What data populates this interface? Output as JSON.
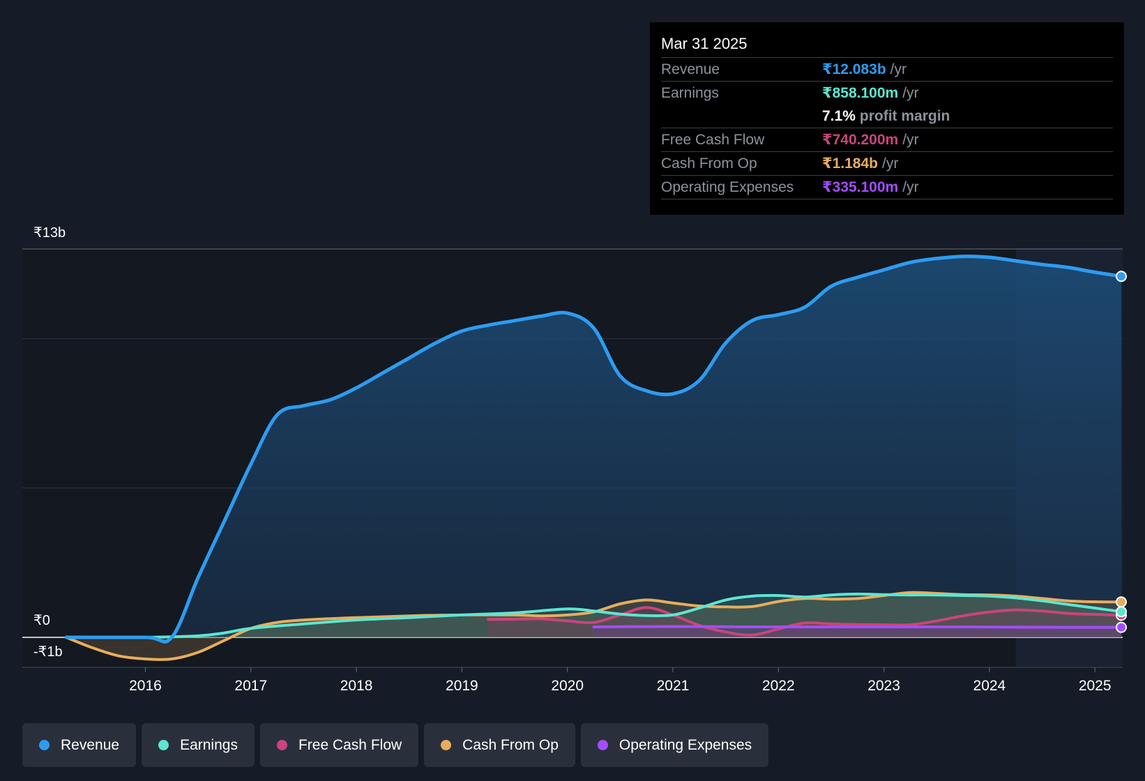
{
  "colors": {
    "revenue": "#2d9cf0",
    "earnings": "#5ce6d2",
    "free_cash_flow": "#c9457c",
    "cash_from_op": "#e8ad5c",
    "operating_expenses": "#a34dff",
    "background": "#161c27"
  },
  "tooltip": {
    "date": "Mar 31 2025",
    "rows": [
      {
        "label": "Revenue",
        "value": "₹12.083b",
        "unit": "/yr"
      },
      {
        "label": "Earnings",
        "value": "₹858.100m",
        "unit": "/yr"
      },
      {
        "label": "",
        "value": "7.1%",
        "unit": "profit margin"
      },
      {
        "label": "Free Cash Flow",
        "value": "₹740.200m",
        "unit": "/yr"
      },
      {
        "label": "Cash From Op",
        "value": "₹1.184b",
        "unit": "/yr"
      },
      {
        "label": "Operating Expenses",
        "value": "₹335.100m",
        "unit": "/yr"
      }
    ]
  },
  "legend": [
    {
      "label": "Revenue",
      "icon": "revenue-dot-icon"
    },
    {
      "label": "Earnings",
      "icon": "earnings-dot-icon"
    },
    {
      "label": "Free Cash Flow",
      "icon": "free-cash-flow-dot-icon"
    },
    {
      "label": "Cash From Op",
      "icon": "cash-from-op-dot-icon"
    },
    {
      "label": "Operating Expenses",
      "icon": "operating-expenses-dot-icon"
    }
  ],
  "chart_data": {
    "type": "area",
    "title": "",
    "xlabel": "",
    "ylabel": "",
    "ylim": [
      -1,
      13
    ],
    "yticks": [
      {
        "value": 13,
        "label": "₹13b"
      },
      {
        "value": 0,
        "label": "₹0"
      },
      {
        "value": -1,
        "label": "-₹1b"
      }
    ],
    "xlim": [
      2015.25,
      2025.25
    ],
    "xticks": [
      {
        "value": 2016,
        "label": "2016"
      },
      {
        "value": 2017,
        "label": "2017"
      },
      {
        "value": 2018,
        "label": "2018"
      },
      {
        "value": 2019,
        "label": "2019"
      },
      {
        "value": 2020,
        "label": "2020"
      },
      {
        "value": 2021,
        "label": "2021"
      },
      {
        "value": 2022,
        "label": "2022"
      },
      {
        "value": 2023,
        "label": "2023"
      },
      {
        "value": 2024,
        "label": "2024"
      },
      {
        "value": 2025,
        "label": "2025"
      }
    ],
    "grid": true,
    "forecast_shade_from": 2024.25,
    "series": [
      {
        "name": "Revenue",
        "key": "revenue",
        "points": [
          [
            2015.25,
            0
          ],
          [
            2016.0,
            0
          ],
          [
            2016.25,
            0
          ],
          [
            2016.5,
            2.0
          ],
          [
            2016.75,
            3.9
          ],
          [
            2017.0,
            5.8
          ],
          [
            2017.25,
            7.45
          ],
          [
            2017.5,
            7.75
          ],
          [
            2017.75,
            7.95
          ],
          [
            2018.0,
            8.35
          ],
          [
            2018.25,
            8.85
          ],
          [
            2018.5,
            9.35
          ],
          [
            2018.75,
            9.85
          ],
          [
            2019.0,
            10.25
          ],
          [
            2019.25,
            10.45
          ],
          [
            2019.5,
            10.6
          ],
          [
            2019.75,
            10.75
          ],
          [
            2020.0,
            10.85
          ],
          [
            2020.25,
            10.35
          ],
          [
            2020.5,
            8.75
          ],
          [
            2020.75,
            8.25
          ],
          [
            2021.0,
            8.15
          ],
          [
            2021.25,
            8.6
          ],
          [
            2021.5,
            9.85
          ],
          [
            2021.75,
            10.6
          ],
          [
            2022.0,
            10.8
          ],
          [
            2022.25,
            11.05
          ],
          [
            2022.5,
            11.75
          ],
          [
            2022.75,
            12.05
          ],
          [
            2023.0,
            12.3
          ],
          [
            2023.25,
            12.55
          ],
          [
            2023.5,
            12.68
          ],
          [
            2023.75,
            12.75
          ],
          [
            2024.0,
            12.72
          ],
          [
            2024.25,
            12.6
          ],
          [
            2024.5,
            12.48
          ],
          [
            2024.75,
            12.38
          ],
          [
            2025.0,
            12.22
          ],
          [
            2025.25,
            12.083
          ]
        ]
      },
      {
        "name": "Earnings",
        "key": "earnings",
        "points": [
          [
            2015.25,
            0
          ],
          [
            2016.0,
            0
          ],
          [
            2016.5,
            0.05
          ],
          [
            2016.75,
            0.15
          ],
          [
            2017.0,
            0.3
          ],
          [
            2017.5,
            0.45
          ],
          [
            2018.0,
            0.58
          ],
          [
            2018.5,
            0.66
          ],
          [
            2019.0,
            0.75
          ],
          [
            2019.5,
            0.82
          ],
          [
            2020.0,
            0.95
          ],
          [
            2020.25,
            0.88
          ],
          [
            2020.5,
            0.78
          ],
          [
            2020.75,
            0.73
          ],
          [
            2021.0,
            0.75
          ],
          [
            2021.25,
            0.98
          ],
          [
            2021.5,
            1.25
          ],
          [
            2021.75,
            1.38
          ],
          [
            2022.0,
            1.4
          ],
          [
            2022.25,
            1.35
          ],
          [
            2022.5,
            1.42
          ],
          [
            2022.75,
            1.45
          ],
          [
            2023.0,
            1.43
          ],
          [
            2023.25,
            1.42
          ],
          [
            2023.5,
            1.42
          ],
          [
            2023.75,
            1.4
          ],
          [
            2024.0,
            1.38
          ],
          [
            2024.25,
            1.32
          ],
          [
            2024.5,
            1.22
          ],
          [
            2024.75,
            1.1
          ],
          [
            2025.0,
            0.98
          ],
          [
            2025.25,
            0.858
          ]
        ]
      },
      {
        "name": "Free Cash Flow",
        "key": "free_cash_flow",
        "points": [
          [
            2019.25,
            0.6
          ],
          [
            2019.5,
            0.61
          ],
          [
            2019.75,
            0.62
          ],
          [
            2020.0,
            0.55
          ],
          [
            2020.25,
            0.5
          ],
          [
            2020.5,
            0.75
          ],
          [
            2020.75,
            1.0
          ],
          [
            2021.0,
            0.75
          ],
          [
            2021.25,
            0.4
          ],
          [
            2021.5,
            0.18
          ],
          [
            2021.75,
            0.08
          ],
          [
            2022.0,
            0.28
          ],
          [
            2022.25,
            0.48
          ],
          [
            2022.5,
            0.45
          ],
          [
            2022.75,
            0.43
          ],
          [
            2023.0,
            0.42
          ],
          [
            2023.25,
            0.42
          ],
          [
            2023.5,
            0.55
          ],
          [
            2023.75,
            0.72
          ],
          [
            2024.0,
            0.85
          ],
          [
            2024.25,
            0.92
          ],
          [
            2024.5,
            0.88
          ],
          [
            2024.75,
            0.8
          ],
          [
            2025.0,
            0.77
          ],
          [
            2025.25,
            0.74
          ]
        ]
      },
      {
        "name": "Cash From Op",
        "key": "cash_from_op",
        "points": [
          [
            2015.25,
            0
          ],
          [
            2015.5,
            -0.35
          ],
          [
            2015.75,
            -0.62
          ],
          [
            2016.0,
            -0.72
          ],
          [
            2016.25,
            -0.72
          ],
          [
            2016.5,
            -0.5
          ],
          [
            2016.75,
            -0.1
          ],
          [
            2017.0,
            0.3
          ],
          [
            2017.25,
            0.5
          ],
          [
            2017.5,
            0.58
          ],
          [
            2018.0,
            0.66
          ],
          [
            2018.5,
            0.72
          ],
          [
            2019.0,
            0.75
          ],
          [
            2019.5,
            0.75
          ],
          [
            2019.75,
            0.72
          ],
          [
            2020.0,
            0.75
          ],
          [
            2020.25,
            0.85
          ],
          [
            2020.5,
            1.12
          ],
          [
            2020.75,
            1.25
          ],
          [
            2021.0,
            1.15
          ],
          [
            2021.25,
            1.05
          ],
          [
            2021.5,
            1.02
          ],
          [
            2021.75,
            1.03
          ],
          [
            2022.0,
            1.2
          ],
          [
            2022.25,
            1.3
          ],
          [
            2022.5,
            1.28
          ],
          [
            2022.75,
            1.3
          ],
          [
            2023.0,
            1.4
          ],
          [
            2023.25,
            1.5
          ],
          [
            2023.5,
            1.47
          ],
          [
            2023.75,
            1.43
          ],
          [
            2024.0,
            1.42
          ],
          [
            2024.25,
            1.38
          ],
          [
            2024.5,
            1.3
          ],
          [
            2024.75,
            1.22
          ],
          [
            2025.0,
            1.19
          ],
          [
            2025.25,
            1.184
          ]
        ]
      },
      {
        "name": "Operating Expenses",
        "key": "operating_expenses",
        "points": [
          [
            2020.25,
            0.35
          ],
          [
            2020.75,
            0.36
          ],
          [
            2021.25,
            0.36
          ],
          [
            2021.75,
            0.35
          ],
          [
            2022.25,
            0.35
          ],
          [
            2022.75,
            0.35
          ],
          [
            2023.25,
            0.35
          ],
          [
            2023.75,
            0.35
          ],
          [
            2024.25,
            0.34
          ],
          [
            2024.75,
            0.335
          ],
          [
            2025.0,
            0.335
          ],
          [
            2025.25,
            0.3351
          ]
        ]
      }
    ]
  }
}
